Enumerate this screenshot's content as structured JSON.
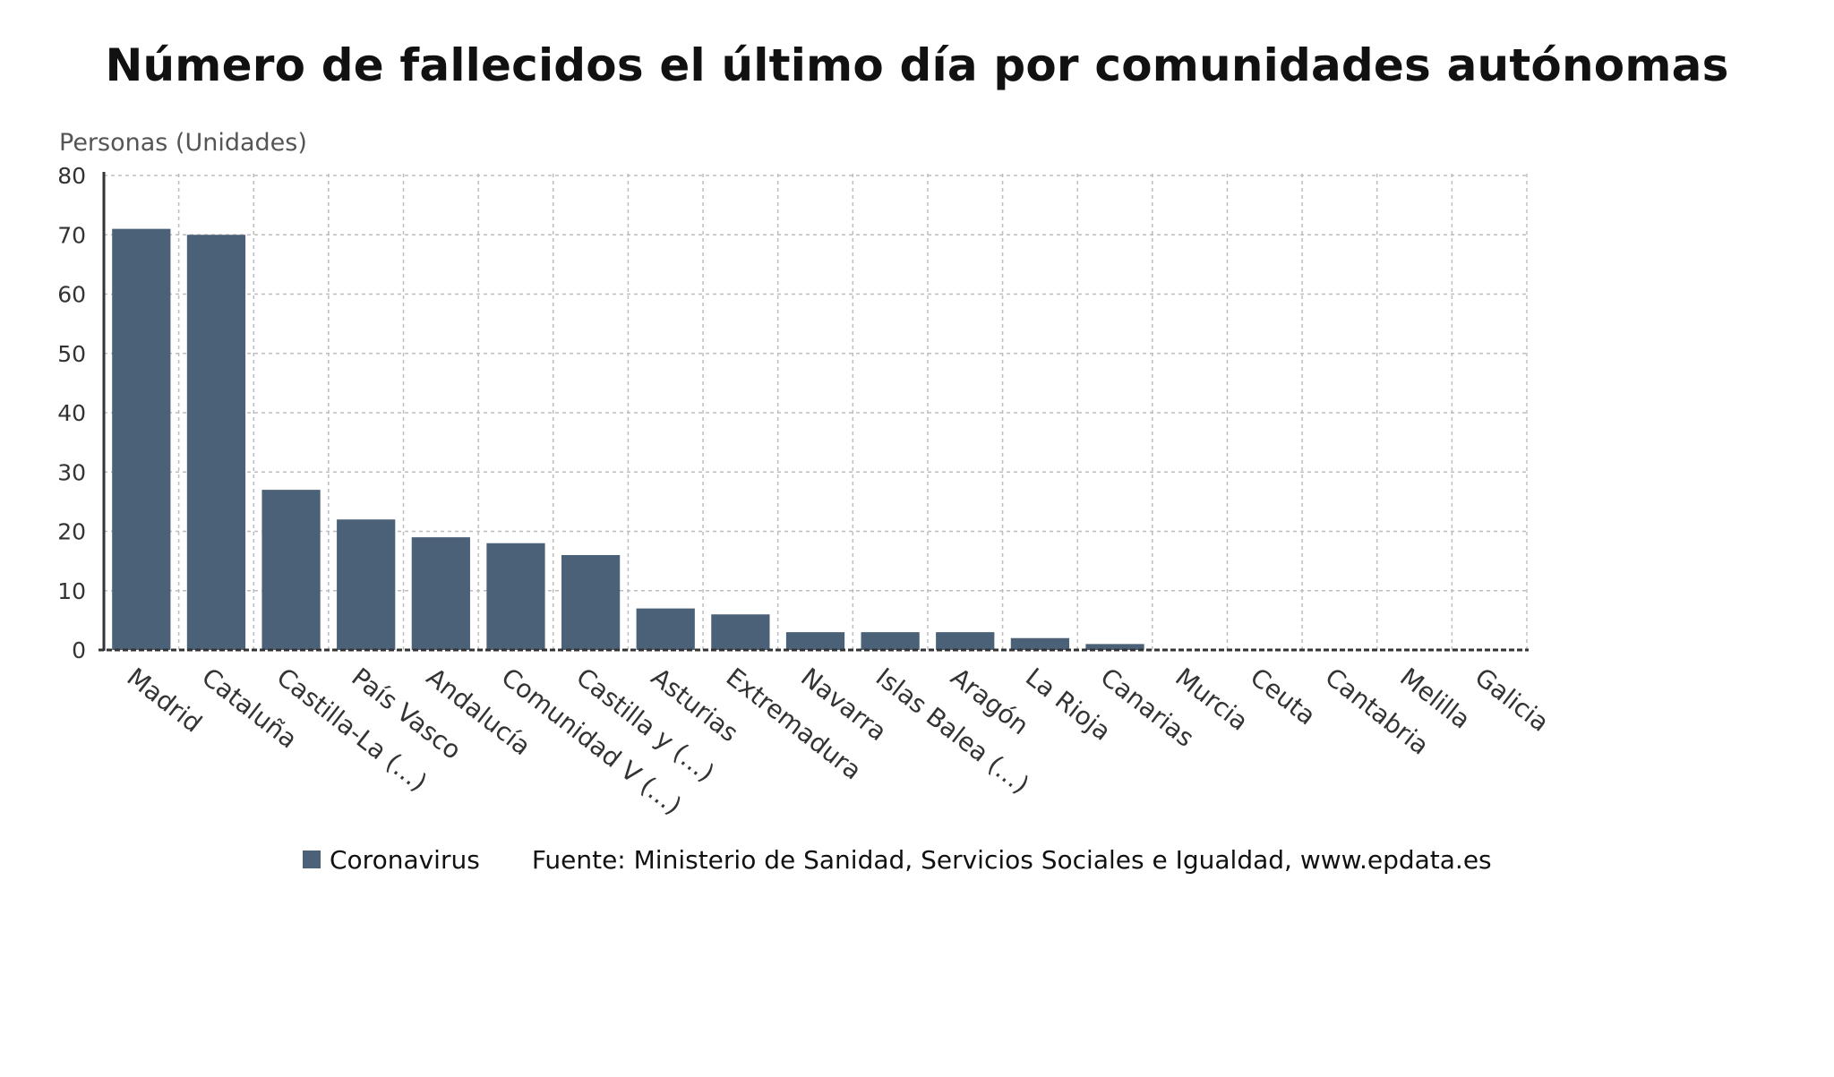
{
  "chart_data": {
    "type": "bar",
    "title": "Número de fallecidos el último día por comunidades autónomas",
    "ylabel": "Personas (Unidades)",
    "xlabel": "",
    "ylim": [
      0,
      80
    ],
    "yticks": [
      0,
      10,
      20,
      30,
      40,
      50,
      60,
      70,
      80
    ],
    "grid": true,
    "legend_position": "bottom",
    "categories": [
      "Madrid",
      "Cataluña",
      "Castilla-La (...)",
      "País Vasco",
      "Andalucía",
      "Comunidad V (...)",
      "Castilla y (...)",
      "Asturias",
      "Extremadura",
      "Navarra",
      "Islas Balea (...)",
      "Aragón",
      "La Rioja",
      "Canarias",
      "Murcia",
      "Ceuta",
      "Cantabria",
      "Melilla",
      "Galicia"
    ],
    "series": [
      {
        "name": "Coronavirus",
        "color": "#4a6178",
        "values": [
          71,
          70,
          27,
          22,
          19,
          18,
          16,
          7,
          6,
          3,
          3,
          3,
          2,
          1,
          0,
          0,
          0,
          0,
          0
        ]
      }
    ],
    "source": "Fuente: Ministerio de Sanidad, Servicios Sociales e Igualdad, www.epdata.es"
  }
}
